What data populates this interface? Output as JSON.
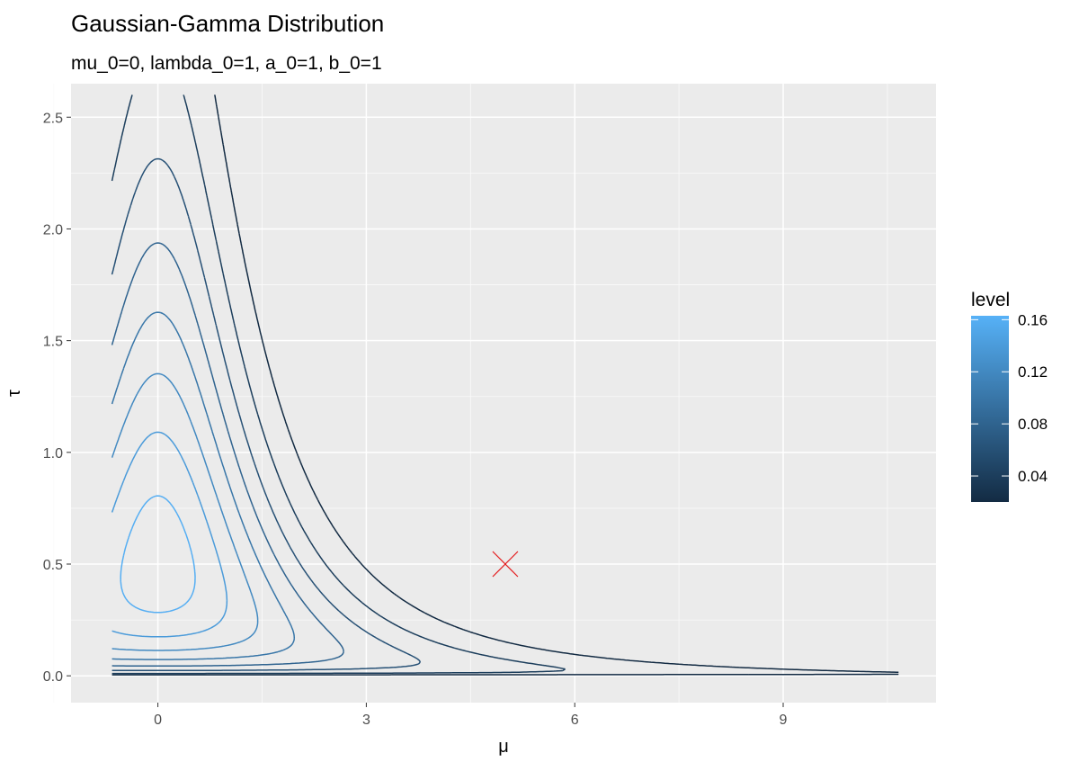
{
  "chart_data": {
    "type": "contour",
    "title": "Gaussian-Gamma Distribution",
    "subtitle": "mu_0=0, lambda_0=1, a_0=1, b_0=1",
    "xlabel": "μ",
    "ylabel": "τ",
    "xlim": [
      -1.25,
      11.2
    ],
    "ylim": [
      -0.12,
      2.65
    ],
    "x_ticks": [
      0,
      3,
      6,
      9
    ],
    "x_tick_labels": [
      "0",
      "3",
      "6",
      "9"
    ],
    "y_ticks": [
      0.0,
      0.5,
      1.0,
      1.5,
      2.0,
      2.5
    ],
    "y_tick_labels": [
      "0.0",
      "0.5",
      "1.0",
      "1.5",
      "2.0",
      "2.5"
    ],
    "grid": true,
    "params": {
      "mu_0": 0,
      "lambda_0": 1,
      "a_0": 1,
      "b_0": 1
    },
    "x_range": [
      -0.66,
      10.66
    ],
    "levels": [
      0.02,
      0.04,
      0.06,
      0.08,
      0.1,
      0.12,
      0.14,
      0.16
    ],
    "color_scale": {
      "low": "#132b43",
      "high": "#56b1f7"
    },
    "marker": {
      "shape": "x",
      "x": 5,
      "y": 0.5,
      "color": "#e41a1c"
    },
    "legend": {
      "title": "level",
      "position": "right",
      "ticks": [
        0.04,
        0.08,
        0.12,
        0.16
      ],
      "tick_labels": [
        "0.04",
        "0.08",
        "0.12",
        "0.16"
      ],
      "range": [
        0.02,
        0.163
      ]
    }
  }
}
